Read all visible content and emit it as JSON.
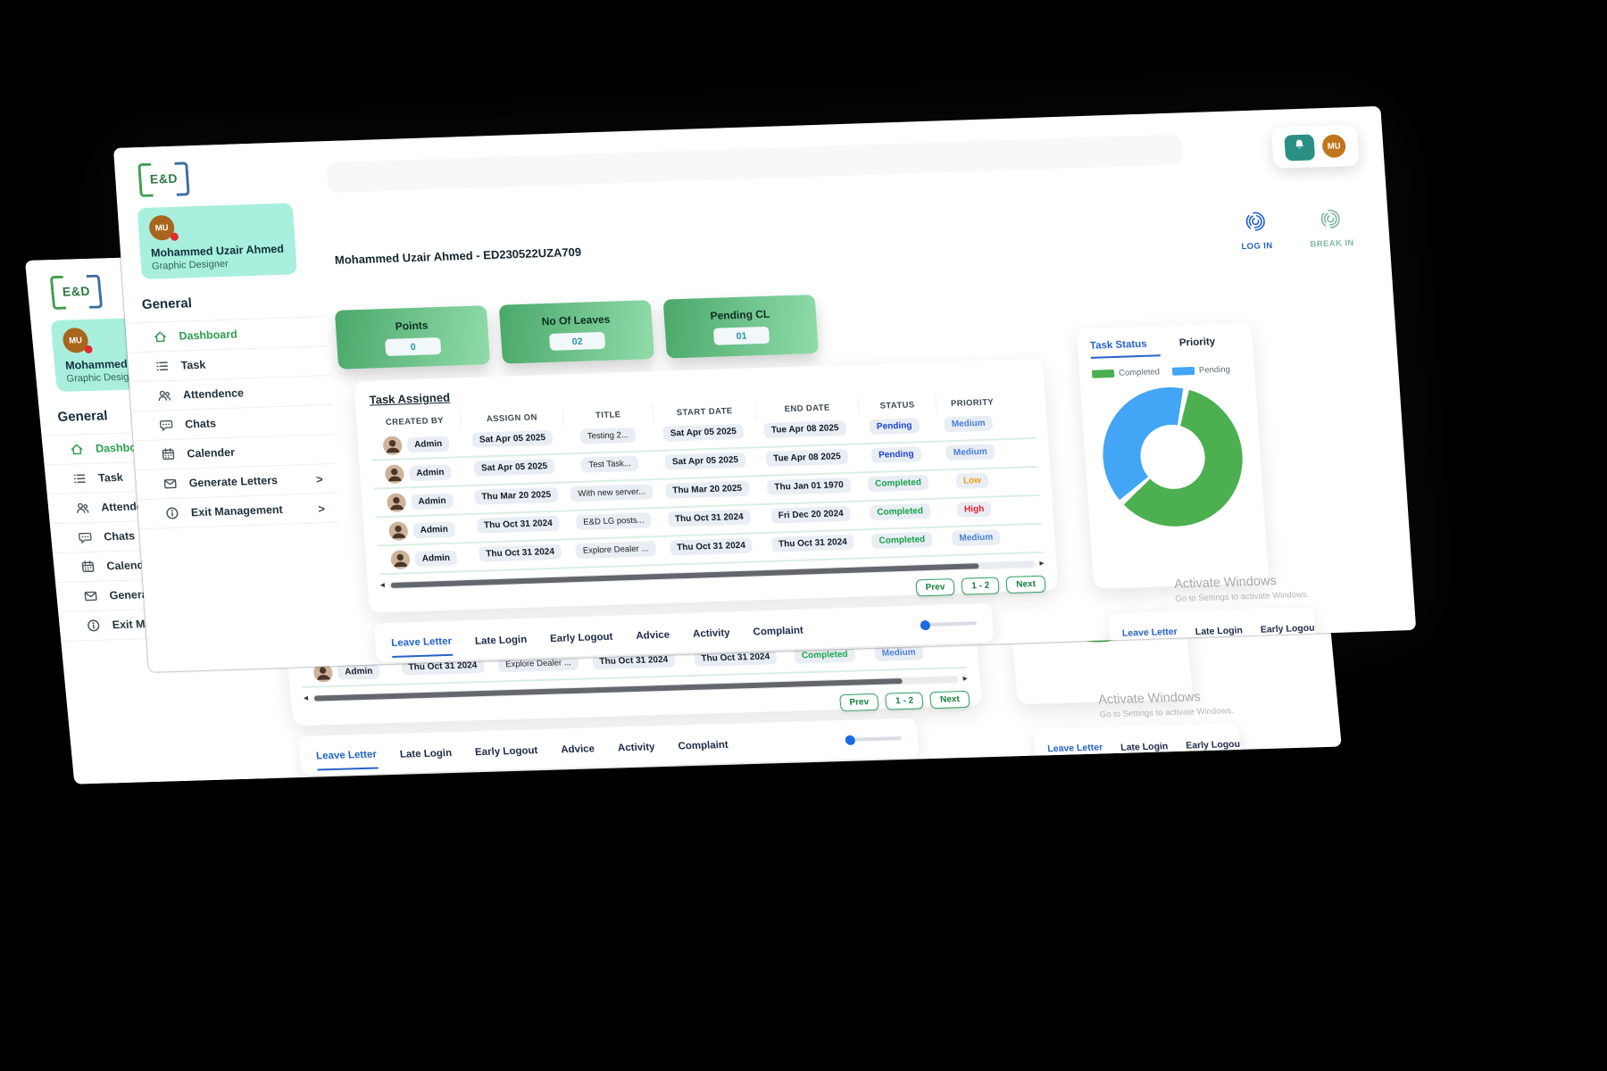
{
  "brand": {
    "logo_text": "E&D"
  },
  "user": {
    "initials": "MU",
    "name": "Mohammed Uzair Ahmed",
    "role": "Graphic Designer",
    "header_title": "Mohammed Uzair Ahmed - ED230522UZA709"
  },
  "sidebar": {
    "section": "General",
    "items": [
      {
        "label": "Dashboard",
        "icon": "home-icon",
        "active": true
      },
      {
        "label": "Task",
        "icon": "task-list-icon"
      },
      {
        "label": "Attendence",
        "icon": "attendance-icon"
      },
      {
        "label": "Chats",
        "icon": "chat-icon"
      },
      {
        "label": "Calender",
        "icon": "calendar-icon"
      },
      {
        "label": "Generate Letters",
        "icon": "mail-icon",
        "chevron": true
      },
      {
        "label": "Exit Management",
        "icon": "info-icon",
        "chevron": true
      }
    ]
  },
  "topbar": {
    "punch_buttons": [
      {
        "label": "LOG IN",
        "icon": "fingerprint-icon",
        "color": "#2563c9"
      },
      {
        "label": "BREAK IN",
        "icon": "fingerprint-icon",
        "color": "#84b8a2"
      }
    ]
  },
  "stats": [
    {
      "label": "Points",
      "value": "0"
    },
    {
      "label": "No Of Leaves",
      "value": "02"
    },
    {
      "label": "Pending CL",
      "value": "01"
    }
  ],
  "task_table": {
    "title": "Task Assigned",
    "columns": [
      "CREATED BY",
      "ASSIGN ON",
      "TITLE",
      "START DATE",
      "END DATE",
      "STATUS",
      "PRIORITY"
    ],
    "rows": [
      {
        "created_by": "Admin",
        "assign_on": "Sat Apr 05 2025",
        "title": "Testing 2...",
        "start_date": "Sat Apr 05 2025",
        "end_date": "Tue Apr 08 2025",
        "status": "Pending",
        "priority": "Medium"
      },
      {
        "created_by": "Admin",
        "assign_on": "Sat Apr 05 2025",
        "title": "Test Task...",
        "start_date": "Sat Apr 05 2025",
        "end_date": "Tue Apr 08 2025",
        "status": "Pending",
        "priority": "Medium"
      },
      {
        "created_by": "Admin",
        "assign_on": "Thu Mar 20 2025",
        "title": "With new server...",
        "start_date": "Thu Mar 20 2025",
        "end_date": "Thu Jan 01 1970",
        "status": "Completed",
        "priority": "Low"
      },
      {
        "created_by": "Admin",
        "assign_on": "Thu Oct 31 2024",
        "title": "E&D LG posts...",
        "start_date": "Thu Oct 31 2024",
        "end_date": "Fri Dec 20 2024",
        "status": "Completed",
        "priority": "High"
      },
      {
        "created_by": "Admin",
        "assign_on": "Thu Oct 31 2024",
        "title": "Explore Dealer ...",
        "start_date": "Thu Oct 31 2024",
        "end_date": "Thu Oct 31 2024",
        "status": "Completed",
        "priority": "Medium"
      }
    ]
  },
  "pagination": {
    "prev": "Prev",
    "page": "1 - 2",
    "next": "Next"
  },
  "tabs": {
    "items": [
      "Leave Letter",
      "Late Login",
      "Early Logout",
      "Advice",
      "Activity",
      "Complaint"
    ],
    "active": "Leave Letter"
  },
  "right_panel": {
    "tabs": [
      "Task Status",
      "Priority"
    ],
    "active": "Task Status"
  },
  "chart_data": {
    "type": "pie",
    "subtype": "donut",
    "title": "Task Status",
    "labels": [
      "Completed",
      "Pending"
    ],
    "values": [
      3,
      2
    ],
    "colors": [
      "#4caf50",
      "#42a5f5"
    ],
    "legend_position": "top",
    "hole": 0.46,
    "start_angle_deg": 15
  },
  "watermark": {
    "line1": "Activate Windows",
    "line2": "Go to Settings to activate Windows."
  },
  "colors": {
    "pending": "#1b44d8",
    "completed": "#18a24b",
    "medium": "#4a7fd9",
    "low": "#f09f1f",
    "high": "#e8212e",
    "accent_green": "#2e9e4f",
    "tab_active": "#2563c9"
  },
  "icons": {
    "scroll_left": "◂",
    "scroll_right": "▸",
    "chevron_right": ">"
  }
}
